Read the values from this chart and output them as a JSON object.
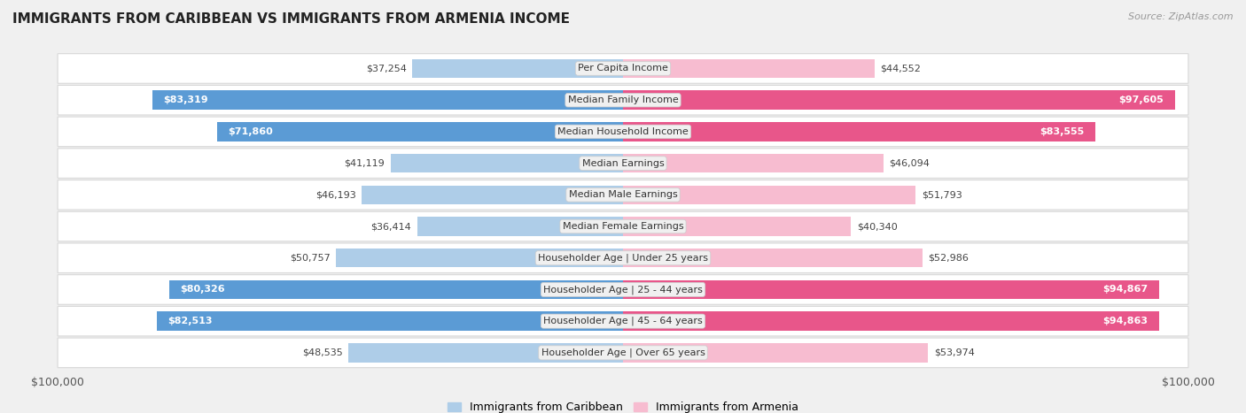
{
  "title": "IMMIGRANTS FROM CARIBBEAN VS IMMIGRANTS FROM ARMENIA INCOME",
  "source": "Source: ZipAtlas.com",
  "categories": [
    "Per Capita Income",
    "Median Family Income",
    "Median Household Income",
    "Median Earnings",
    "Median Male Earnings",
    "Median Female Earnings",
    "Householder Age | Under 25 years",
    "Householder Age | 25 - 44 years",
    "Householder Age | 45 - 64 years",
    "Householder Age | Over 65 years"
  ],
  "caribbean_values": [
    37254,
    83319,
    71860,
    41119,
    46193,
    36414,
    50757,
    80326,
    82513,
    48535
  ],
  "armenia_values": [
    44552,
    97605,
    83555,
    46094,
    51793,
    40340,
    52986,
    94867,
    94863,
    53974
  ],
  "caribbean_color_light": "#aecde8",
  "caribbean_color_dark": "#5b9bd5",
  "armenia_color_light": "#f7bcd0",
  "armenia_color_dark": "#e8568a",
  "max_value": 100000,
  "background_color": "#f0f0f0",
  "row_bg_color": "#ffffff",
  "row_border_color": "#d8d8d8",
  "label_bg_color": "#f0f0f0",
  "legend_caribbean": "Immigrants from Caribbean",
  "legend_armenia": "Immigrants from Armenia",
  "threshold_dark": 60000
}
